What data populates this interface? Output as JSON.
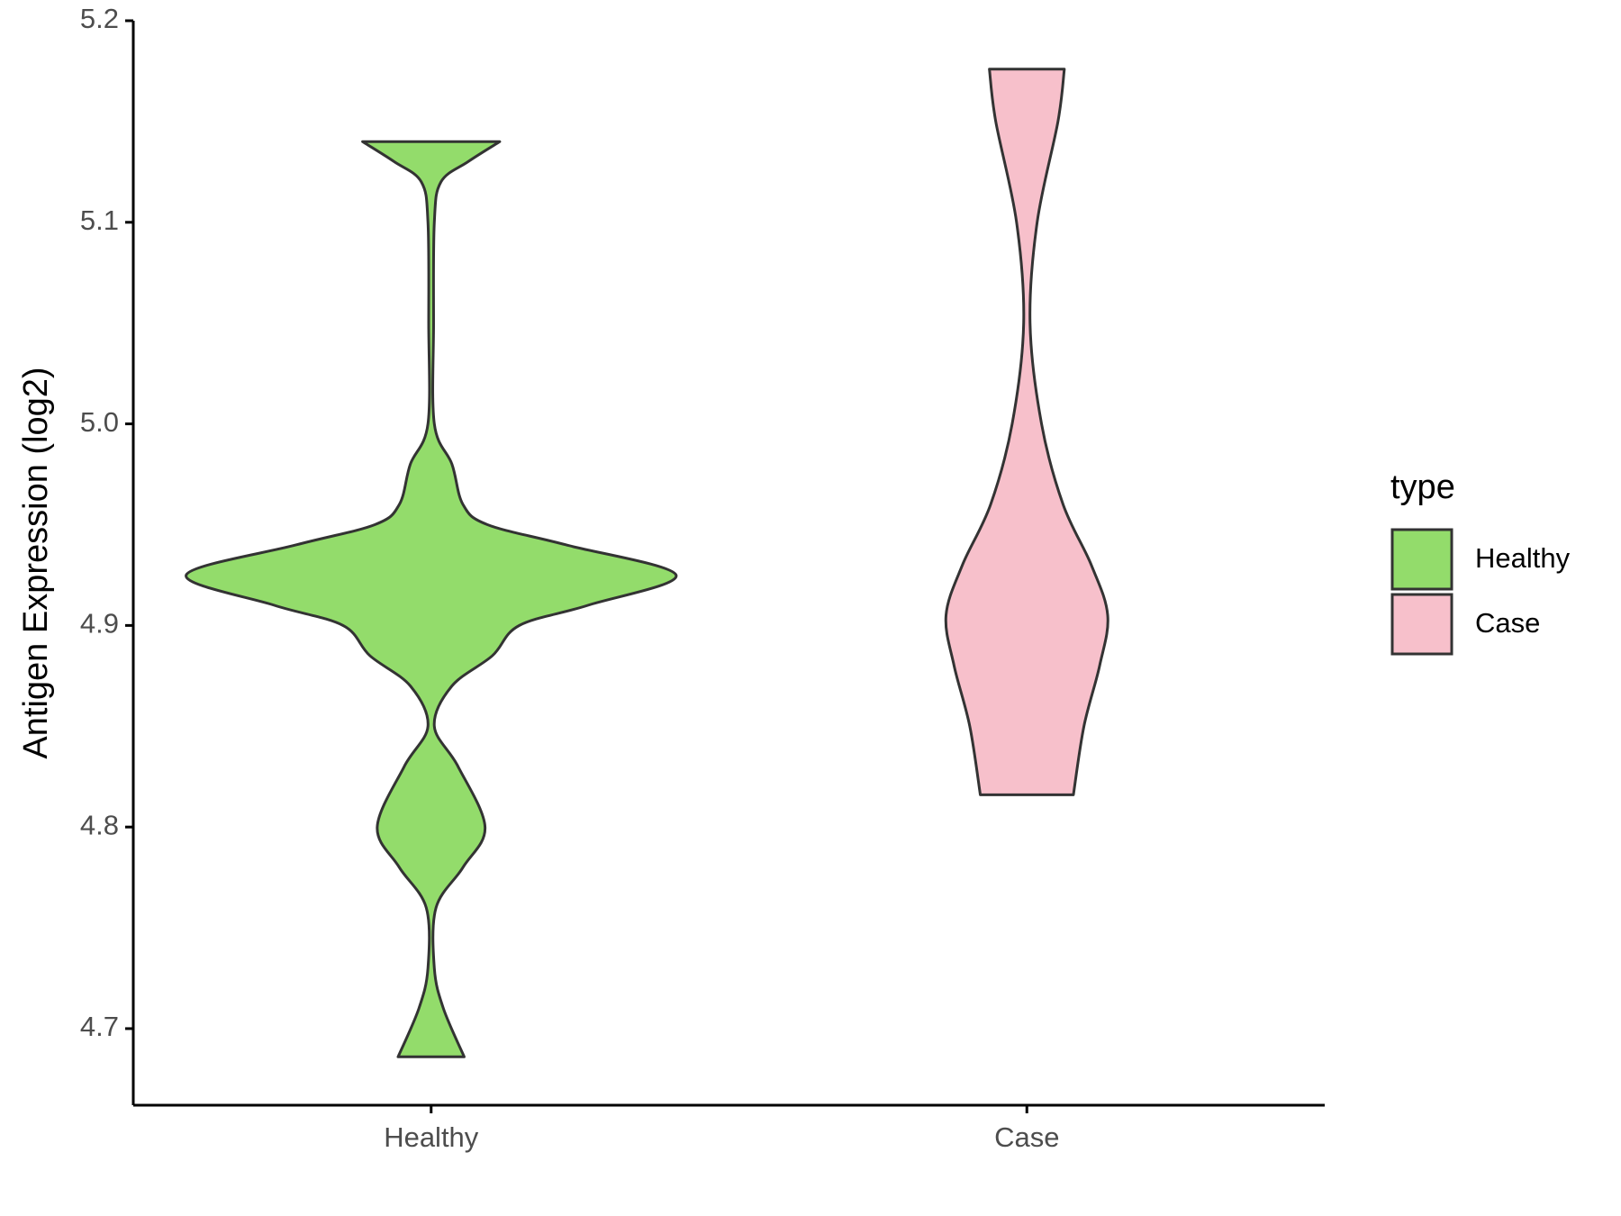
{
  "chart_data": {
    "type": "violin",
    "y_label": "Antigen Expression (log2)",
    "legend_title": "type",
    "categories": [
      "Healthy",
      "Case"
    ],
    "series": [
      {
        "name": "Healthy",
        "color": "#93dc6b",
        "y": [
          4.686,
          4.71,
          4.73,
          4.76,
          4.78,
          4.8,
          4.83,
          4.85,
          4.87,
          4.885,
          4.9,
          4.91,
          4.925,
          4.94,
          4.95,
          4.96,
          4.98,
          5.0,
          5.05,
          5.1,
          5.12,
          5.13,
          5.14
        ],
        "density": [
          0.135,
          0.05,
          0.013,
          0.02,
          0.13,
          0.22,
          0.11,
          0.013,
          0.085,
          0.25,
          0.36,
          0.64,
          1.0,
          0.55,
          0.23,
          0.13,
          0.085,
          0.013,
          0.01,
          0.013,
          0.04,
          0.15,
          0.28
        ]
      },
      {
        "name": "Case",
        "color": "#f7c0cb",
        "y": [
          4.816,
          4.85,
          4.88,
          4.905,
          4.93,
          4.96,
          5.0,
          5.05,
          5.1,
          5.15,
          5.176
        ],
        "density": [
          0.19,
          0.233,
          0.297,
          0.33,
          0.263,
          0.148,
          0.06,
          0.013,
          0.042,
          0.127,
          0.153
        ]
      }
    ],
    "ylim": [
      4.662,
      5.2
    ],
    "yticks": [
      4.7,
      4.8,
      4.9,
      {
        "value": 5.0,
        "label": "5.0"
      },
      5.1,
      5.2
    ]
  }
}
